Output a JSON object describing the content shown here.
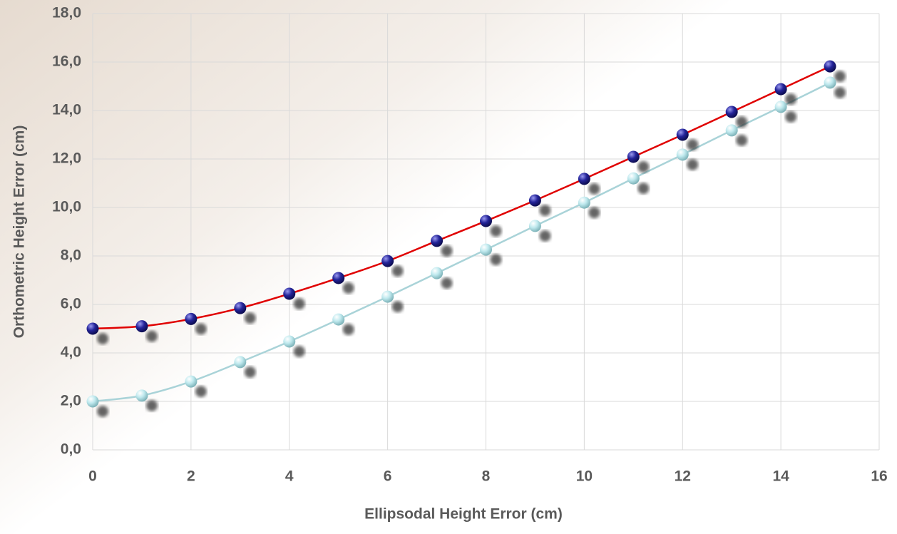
{
  "chart_data": {
    "type": "line",
    "x_label": "Ellipsodal Height Error (cm)",
    "y_label": "Orthometric Height Error (cm)",
    "x": [
      0,
      1,
      2,
      3,
      4,
      5,
      6,
      7,
      8,
      9,
      10,
      11,
      12,
      13,
      14,
      15
    ],
    "series": [
      {
        "color": "#24249a",
        "line_color": "#e00000",
        "values": [
          5.0,
          5.1,
          5.4,
          5.85,
          6.44,
          7.09,
          7.79,
          8.62,
          9.44,
          10.29,
          11.18,
          12.09,
          13.0,
          13.94,
          14.88,
          15.82
        ]
      },
      {
        "color": "#bfe9ee",
        "line_color": "#a9d3d8",
        "values": [
          2.0,
          2.24,
          2.82,
          3.62,
          4.47,
          5.38,
          6.32,
          7.29,
          8.26,
          9.24,
          10.2,
          11.2,
          12.18,
          13.18,
          14.15,
          15.15
        ]
      }
    ],
    "xlim": [
      0,
      16
    ],
    "xticks": [
      0,
      2,
      4,
      6,
      8,
      10,
      12,
      14,
      16
    ],
    "ylim": [
      0,
      18
    ],
    "yticks": [
      {
        "value": 0,
        "label": "0,0"
      },
      {
        "value": 2,
        "label": "2,0"
      },
      {
        "value": 4,
        "label": "4,0"
      },
      {
        "value": 6,
        "label": "6,0"
      },
      {
        "value": 8,
        "label": "8,0"
      },
      {
        "value": 10,
        "label": "10,0"
      },
      {
        "value": 12,
        "label": "12,0"
      },
      {
        "value": 14,
        "label": "14,0"
      },
      {
        "value": 16,
        "label": "16,0"
      },
      {
        "value": 18,
        "label": "18,0"
      }
    ],
    "grid": true
  }
}
